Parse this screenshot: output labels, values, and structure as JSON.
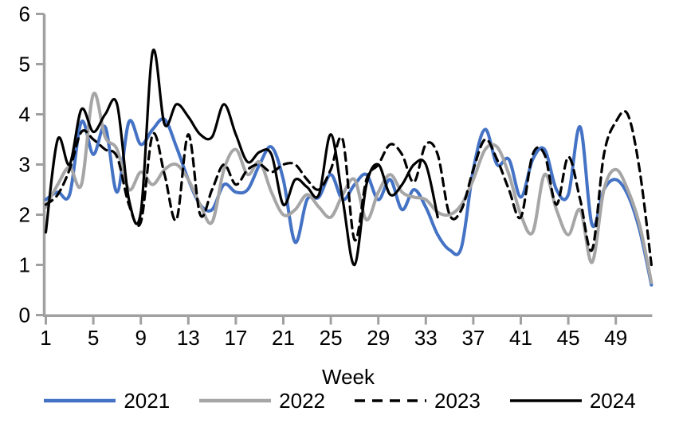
{
  "chart_data": {
    "type": "line",
    "title": "",
    "xlabel": "Week",
    "ylabel": "",
    "ylim": [
      0,
      6
    ],
    "xlim": [
      1,
      52
    ],
    "y_ticks": [
      0,
      1,
      2,
      3,
      4,
      5,
      6
    ],
    "x_ticks": [
      1,
      5,
      9,
      13,
      17,
      21,
      25,
      29,
      33,
      37,
      41,
      45,
      49
    ],
    "grid": false,
    "smooth": true,
    "legend_position": "bottom",
    "axis_color": "#A0A0A0",
    "text_color": "#000000",
    "series": [
      {
        "name": "2021",
        "color": "#4472C4",
        "dash": "solid",
        "start_week": 1,
        "values": [
          2.3,
          2.45,
          2.4,
          3.85,
          3.2,
          3.75,
          2.45,
          3.85,
          3.4,
          3.7,
          3.9,
          3.35,
          2.7,
          2.2,
          2.1,
          2.6,
          2.45,
          2.5,
          3.0,
          3.35,
          2.7,
          1.45,
          2.3,
          2.35,
          2.8,
          2.3,
          2.6,
          2.8,
          2.3,
          2.7,
          2.1,
          2.5,
          2.15,
          1.6,
          1.3,
          1.35,
          2.9,
          3.7,
          3.0,
          3.1,
          2.35,
          3.1,
          3.3,
          2.5,
          2.4,
          3.75,
          1.8,
          2.5,
          2.7,
          2.4,
          1.7,
          0.6
        ]
      },
      {
        "name": "2022",
        "color": "#A6A6A6",
        "dash": "solid",
        "start_week": 1,
        "values": [
          2.15,
          2.6,
          2.95,
          2.6,
          4.4,
          3.55,
          3.3,
          2.5,
          2.85,
          2.6,
          2.9,
          3.0,
          2.7,
          2.2,
          1.85,
          2.9,
          3.3,
          2.8,
          3.05,
          2.45,
          2.0,
          2.1,
          2.4,
          2.15,
          1.95,
          2.4,
          2.7,
          1.9,
          2.45,
          2.8,
          2.45,
          2.35,
          2.3,
          2.05,
          2.0,
          2.2,
          2.7,
          3.3,
          3.35,
          2.8,
          2.0,
          1.65,
          2.8,
          2.1,
          1.6,
          2.1,
          1.05,
          2.5,
          2.9,
          2.5,
          1.8,
          0.65
        ]
      },
      {
        "name": "2023",
        "color": "#000000",
        "dash": "dashed",
        "start_week": 1,
        "values": [
          2.2,
          2.4,
          2.9,
          3.65,
          3.5,
          3.3,
          3.15,
          2.2,
          1.85,
          3.6,
          2.8,
          1.9,
          3.6,
          2.0,
          2.5,
          3.0,
          2.6,
          2.9,
          3.0,
          2.85,
          3.0,
          3.0,
          2.7,
          2.5,
          2.9,
          3.5,
          1.5,
          2.7,
          3.0,
          3.4,
          3.2,
          2.65,
          3.4,
          3.2,
          2.0,
          2.1,
          2.9,
          3.5,
          3.1,
          2.5,
          1.95,
          3.2,
          3.2,
          2.2,
          3.15,
          2.3,
          1.3,
          3.2,
          3.85,
          4.0,
          2.9,
          1.0
        ]
      },
      {
        "name": "2024",
        "color": "#000000",
        "dash": "solid",
        "start_week": 1,
        "values": [
          1.65,
          3.5,
          3.0,
          4.1,
          3.65,
          4.0,
          4.2,
          2.3,
          2.05,
          5.25,
          3.8,
          4.2,
          3.95,
          3.6,
          3.55,
          4.2,
          3.6,
          3.05,
          3.25,
          3.2,
          2.2,
          2.7,
          2.55,
          2.4,
          3.6,
          2.3,
          1.0,
          2.6,
          3.0,
          2.4,
          2.6,
          3.0,
          3.0,
          1.95
        ]
      }
    ]
  }
}
